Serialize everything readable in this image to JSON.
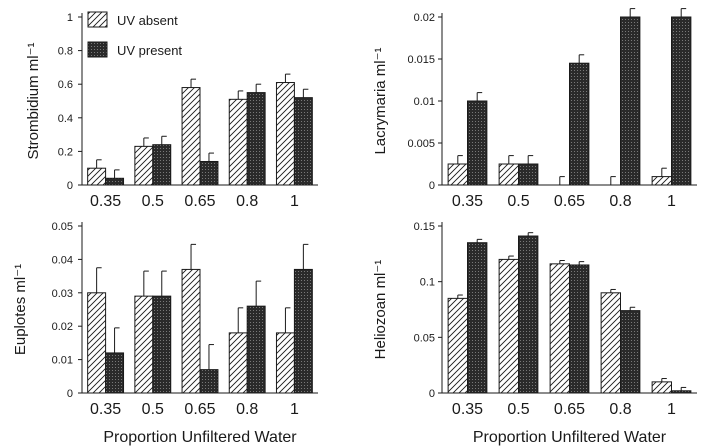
{
  "legend": {
    "absent_label": "UV absent",
    "present_label": "UV present"
  },
  "colors": {
    "absent_fill": "#ffffff",
    "present_fill": "#2a2a2a",
    "stroke": "#1a1a1a"
  },
  "chart_data": [
    {
      "type": "bar",
      "ylabel": "Strombidium ml⁻¹",
      "xlabel": "",
      "categories": [
        "0.35",
        "0.5",
        "0.65",
        "0.8",
        "1"
      ],
      "ylim": [
        0,
        1
      ],
      "yticks": [
        "0",
        "0.2",
        "0.4",
        "0.6",
        "0.8",
        "1"
      ],
      "ytick_values": [
        0,
        0.2,
        0.4,
        0.6,
        0.8,
        1
      ],
      "series": [
        {
          "name": "UV absent",
          "values": [
            0.1,
            0.23,
            0.58,
            0.51,
            0.61
          ],
          "errors": [
            0.05,
            0.05,
            0.05,
            0.05,
            0.05
          ]
        },
        {
          "name": "UV present",
          "values": [
            0.04,
            0.24,
            0.14,
            0.55,
            0.52
          ],
          "errors": [
            0.05,
            0.05,
            0.05,
            0.05,
            0.05
          ]
        }
      ]
    },
    {
      "type": "bar",
      "ylabel": "Lacrymaria ml⁻¹",
      "xlabel": "",
      "categories": [
        "0.35",
        "0.5",
        "0.65",
        "0.8",
        "1"
      ],
      "ylim": [
        0,
        0.02
      ],
      "yticks": [
        "0",
        "0.005",
        "0.01",
        "0.015",
        "0.02"
      ],
      "ytick_values": [
        0,
        0.005,
        0.01,
        0.015,
        0.02
      ],
      "series": [
        {
          "name": "UV absent",
          "values": [
            0.0025,
            0.0025,
            0.0,
            0.0,
            0.001
          ],
          "errors": [
            0.001,
            0.001,
            0.001,
            0.001,
            0.001
          ]
        },
        {
          "name": "UV present",
          "values": [
            0.01,
            0.0025,
            0.0145,
            0.02,
            0.02
          ],
          "errors": [
            0.001,
            0.001,
            0.001,
            0.001,
            0.001
          ]
        }
      ]
    },
    {
      "type": "bar",
      "ylabel": "Euplotes ml⁻¹",
      "xlabel": "Proportion Unfiltered Water",
      "categories": [
        "0.35",
        "0.5",
        "0.65",
        "0.8",
        "1"
      ],
      "ylim": [
        0,
        0.05
      ],
      "yticks": [
        "0",
        "0.01",
        "0.02",
        "0.03",
        "0.04",
        "0.05"
      ],
      "ytick_values": [
        0,
        0.01,
        0.02,
        0.03,
        0.04,
        0.05
      ],
      "series": [
        {
          "name": "UV absent",
          "values": [
            0.03,
            0.029,
            0.037,
            0.018,
            0.018
          ],
          "errors": [
            0.0075,
            0.0075,
            0.0075,
            0.0075,
            0.0075
          ]
        },
        {
          "name": "UV present",
          "values": [
            0.012,
            0.029,
            0.007,
            0.026,
            0.037
          ],
          "errors": [
            0.0075,
            0.0075,
            0.0075,
            0.0075,
            0.0075
          ]
        }
      ]
    },
    {
      "type": "bar",
      "ylabel": "Heliozoan ml⁻¹",
      "xlabel": "Proportion Unfiltered Water",
      "categories": [
        "0.35",
        "0.5",
        "0.65",
        "0.8",
        "1"
      ],
      "ylim": [
        0,
        0.15
      ],
      "yticks": [
        "0",
        "0.05",
        "0.1",
        "0.15"
      ],
      "ytick_values": [
        0,
        0.05,
        0.1,
        0.15
      ],
      "series": [
        {
          "name": "UV absent",
          "values": [
            0.085,
            0.12,
            0.116,
            0.09,
            0.01
          ],
          "errors": [
            0.003,
            0.003,
            0.003,
            0.003,
            0.003
          ]
        },
        {
          "name": "UV present",
          "values": [
            0.135,
            0.141,
            0.115,
            0.074,
            0.002
          ],
          "errors": [
            0.003,
            0.003,
            0.003,
            0.003,
            0.003
          ]
        }
      ]
    }
  ]
}
